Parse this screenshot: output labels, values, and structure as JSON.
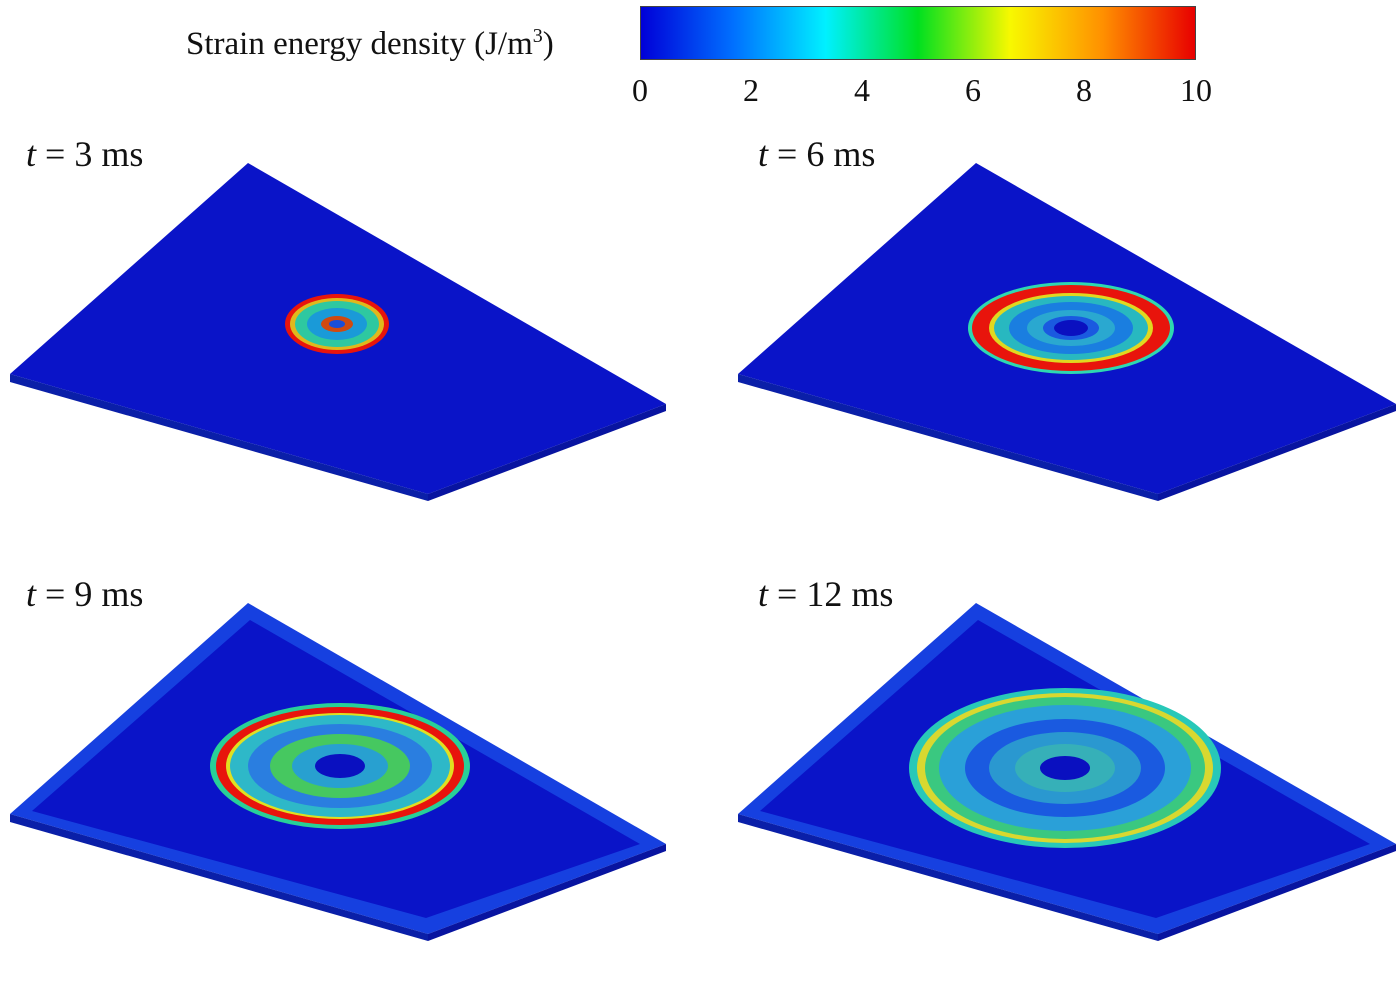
{
  "colorbar": {
    "label_prefix": "Strain energy density (J/m",
    "label_sup": "3",
    "label_suffix": ")",
    "ticks": [
      "0",
      "2",
      "4",
      "6",
      "8",
      "10"
    ],
    "range": [
      0,
      10
    ],
    "colormap": [
      "#0000d8",
      "#0070ff",
      "#00f0ff",
      "#00e020",
      "#f8f800",
      "#ff9000",
      "#e80000"
    ]
  },
  "panels": [
    {
      "time_var": "t",
      "time_text": "= 3 ms"
    },
    {
      "time_var": "t",
      "time_text": "= 6 ms"
    },
    {
      "time_var": "t",
      "time_text": "= 9 ms"
    },
    {
      "time_var": "t",
      "time_text": "= 12 ms"
    }
  ],
  "colors": {
    "plate_top": "#0a14c8",
    "plate_edge": "#1640e0",
    "plate_side": "#0a1fa8"
  }
}
